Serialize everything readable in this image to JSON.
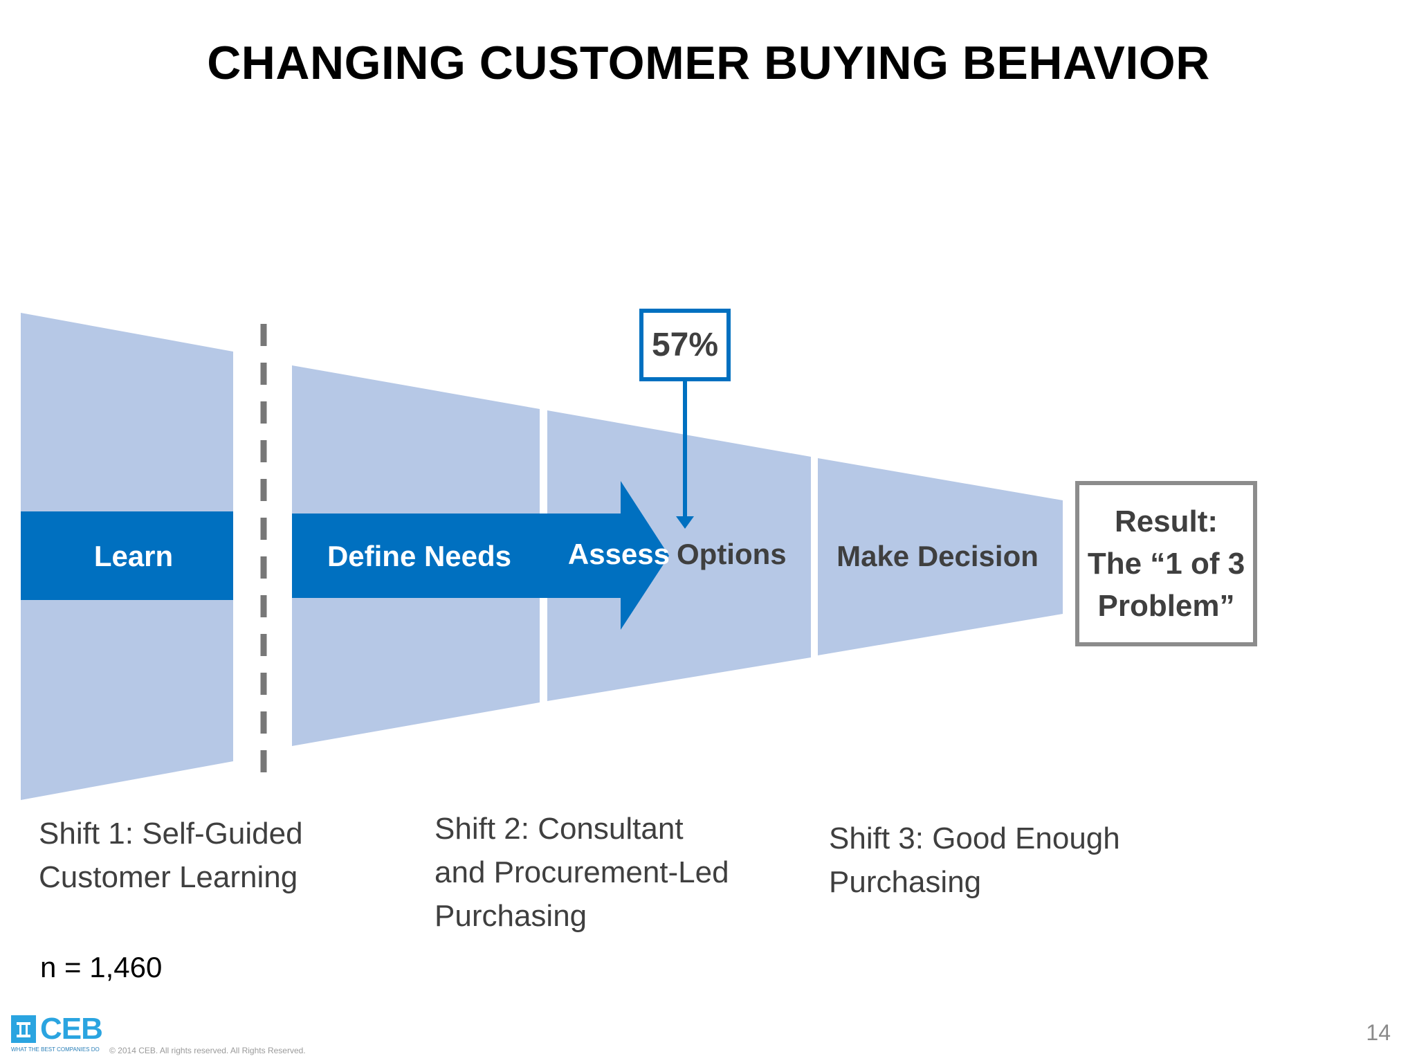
{
  "slide": {
    "title": "CHANGING CUSTOMER BUYING BEHAVIOR",
    "page_number": "14",
    "sample_size": "n = 1,460"
  },
  "stages": {
    "learn": "Learn",
    "define_needs": "Define Needs",
    "assess": "Assess",
    "options": "Options",
    "make_decision": "Make Decision"
  },
  "callout": {
    "percent": "57%"
  },
  "result": {
    "line1": "Result:",
    "line2": "The “1 of 3",
    "line3": "Problem”"
  },
  "shifts": {
    "shift1": [
      "Shift 1: Self-Guided",
      "Customer Learning"
    ],
    "shift2": [
      "Shift 2: Consultant",
      "and Procurement-Led",
      "Purchasing"
    ],
    "shift3": [
      "Shift 3: Good Enough",
      "Purchasing"
    ]
  },
  "footer": {
    "logo_text": "CEB",
    "tagline": "WHAT THE BEST COMPANIES DO",
    "copyright": "© 2014 CEB. All rights reserved. All Rights Reserved."
  },
  "colors": {
    "funnel_fill": "#b6c8e6",
    "arrow_fill": "#0070c0",
    "callout_border": "#0070c0",
    "result_border": "#8c8c8c"
  }
}
